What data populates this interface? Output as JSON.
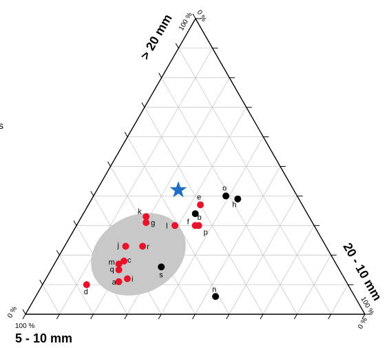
{
  "chart_data": {
    "type": "scatter",
    "subtype": "ternary",
    "axes": {
      "top": {
        "label": "> 20 mm",
        "max_label": "100 %",
        "min_label": "0 %"
      },
      "right": {
        "label": "20 - 10 mm",
        "max_label": "100 %",
        "min_label": "0 %"
      },
      "left": {
        "label": "5 - 10 mm",
        "max_label": "100 %",
        "min_label": "0 %"
      }
    },
    "grid_divisions": 10,
    "grid": true,
    "colors": {
      "red_group": "#e8132b",
      "black_group": "#000000",
      "star": "#1f6fc5",
      "region": "#c8c8c8",
      "grid": "#c8c8c8"
    },
    "stray_text": "s",
    "points": [
      {
        "label": "a",
        "group": "red",
        "coarse": 11,
        "medium": 22,
        "fine": 67
      },
      {
        "label": "c",
        "group": "red",
        "coarse": 18,
        "medium": 20,
        "fine": 62
      },
      {
        "label": "d",
        "group": "red",
        "coarse": 10,
        "medium": 13,
        "fine": 77
      },
      {
        "label": "e",
        "group": "red",
        "coarse": 37,
        "medium": 33,
        "fine": 30
      },
      {
        "label": "f",
        "group": "red",
        "coarse": 30,
        "medium": 35,
        "fine": 35
      },
      {
        "label": "g",
        "group": "red",
        "coarse": 31,
        "medium": 20,
        "fine": 49
      },
      {
        "label": "i",
        "group": "red",
        "coarse": 12,
        "medium": 24,
        "fine": 64
      },
      {
        "label": "j",
        "group": "red",
        "coarse": 23,
        "medium": 18,
        "fine": 59
      },
      {
        "label": "k",
        "group": "red",
        "coarse": 33,
        "medium": 19,
        "fine": 48
      },
      {
        "label": "l",
        "group": "red",
        "coarse": 30,
        "medium": 29,
        "fine": 41
      },
      {
        "label": "m",
        "group": "red",
        "coarse": 17,
        "medium": 19,
        "fine": 64
      },
      {
        "label": "p",
        "group": "red",
        "coarse": 30,
        "medium": 36,
        "fine": 34
      },
      {
        "label": "q",
        "group": "red",
        "coarse": 15,
        "medium": 20,
        "fine": 65
      },
      {
        "label": "r",
        "group": "red",
        "coarse": 23,
        "medium": 23,
        "fine": 54
      },
      {
        "label": "b",
        "group": "black",
        "coarse": 34,
        "medium": 33,
        "fine": 33
      },
      {
        "label": "h",
        "group": "black",
        "coarse": 39,
        "medium": 43,
        "fine": 18
      },
      {
        "label": "n",
        "group": "black",
        "coarse": 6,
        "medium": 53,
        "fine": 41
      },
      {
        "label": "o",
        "group": "black",
        "coarse": 40,
        "medium": 39,
        "fine": 21
      },
      {
        "label": "s",
        "group": "black",
        "coarse": 16,
        "medium": 32,
        "fine": 52
      },
      {
        "label": "",
        "group": "star",
        "coarse": 42,
        "medium": 24,
        "fine": 34
      }
    ],
    "region": {
      "description": "grey ellipse enclosing red points a–r",
      "center": {
        "coarse": 19,
        "medium": 23,
        "fine": 58
      }
    }
  }
}
